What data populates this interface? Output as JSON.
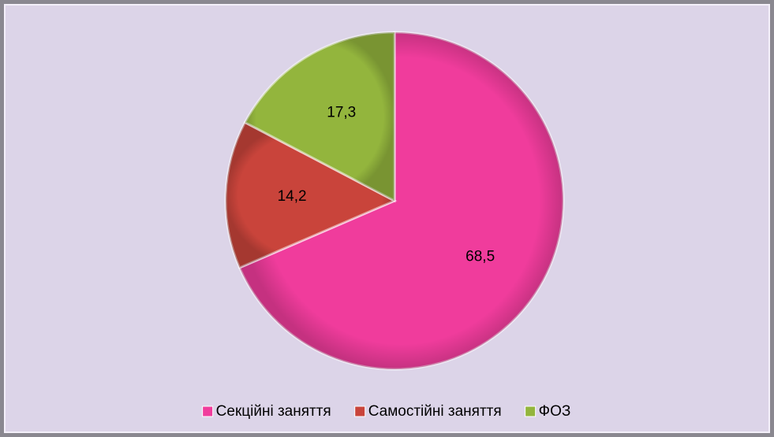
{
  "chart_data": {
    "type": "pie",
    "categories": [
      "Секційні заняття",
      "Самостійні заняття",
      "ФОЗ"
    ],
    "values": [
      68.5,
      14.2,
      17.3
    ],
    "value_labels": [
      "68,5",
      "14,2",
      "17,3"
    ],
    "colors": [
      "#f03c9c",
      "#c9443b",
      "#93b53d"
    ],
    "legend": "bottom"
  }
}
